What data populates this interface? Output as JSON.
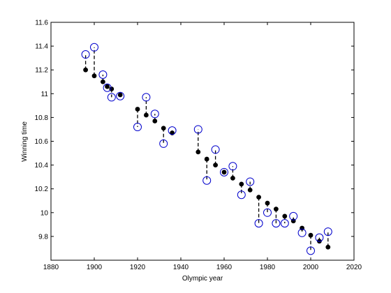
{
  "chart_data": {
    "type": "scatter",
    "xlabel": "Olympic year",
    "ylabel": "Winning time",
    "xlim": [
      1880,
      2020
    ],
    "ylim": [
      9.6,
      11.6
    ],
    "grid": false,
    "xticks": [
      1880,
      1900,
      1920,
      1940,
      1960,
      1980,
      2000,
      2020
    ],
    "yticks": [
      9.8,
      10,
      10.2,
      10.4,
      10.6,
      10.8,
      11,
      11.2,
      11.4,
      11.6
    ],
    "xtick_labels": [
      "1880",
      "1900",
      "1920",
      "1940",
      "1960",
      "1980",
      "2000",
      "2020"
    ],
    "ytick_labels": [
      "9.8",
      "10",
      "10.2",
      "10.4",
      "10.6",
      "10.8",
      "11",
      "11.2",
      "11.4",
      "11.6"
    ],
    "colors": {
      "actual": "#000000",
      "predicted": "#0000cc",
      "residual": "#000000"
    },
    "series": [
      {
        "style": "filled-dot",
        "points": [
          [
            1896,
            11.2
          ],
          [
            1900,
            11.15
          ],
          [
            1904,
            11.1
          ],
          [
            1906,
            11.06
          ],
          [
            1908,
            11.04
          ],
          [
            1912,
            10.99
          ],
          [
            1920,
            10.87
          ],
          [
            1924,
            10.82
          ],
          [
            1928,
            10.77
          ],
          [
            1932,
            10.71
          ],
          [
            1936,
            10.67
          ],
          [
            1948,
            10.51
          ],
          [
            1952,
            10.45
          ],
          [
            1956,
            10.4
          ],
          [
            1960,
            10.34
          ],
          [
            1964,
            10.29
          ],
          [
            1968,
            10.24
          ],
          [
            1972,
            10.19
          ],
          [
            1976,
            10.13
          ],
          [
            1980,
            10.08
          ],
          [
            1984,
            10.03
          ],
          [
            1988,
            9.97
          ],
          [
            1992,
            9.93
          ],
          [
            1996,
            9.87
          ],
          [
            2000,
            9.81
          ],
          [
            2004,
            9.76
          ],
          [
            2008,
            9.71
          ]
        ]
      },
      {
        "style": "open-circle",
        "points": [
          [
            1896,
            11.33
          ],
          [
            1900,
            11.39
          ],
          [
            1904,
            11.16
          ],
          [
            1906,
            11.05
          ],
          [
            1908,
            10.97
          ],
          [
            1912,
            10.98
          ],
          [
            1920,
            10.72
          ],
          [
            1924,
            10.97
          ],
          [
            1928,
            10.83
          ],
          [
            1932,
            10.58
          ],
          [
            1936,
            10.69
          ],
          [
            1948,
            10.7
          ],
          [
            1952,
            10.27
          ],
          [
            1956,
            10.53
          ],
          [
            1960,
            10.34
          ],
          [
            1964,
            10.39
          ],
          [
            1968,
            10.15
          ],
          [
            1972,
            10.26
          ],
          [
            1976,
            9.91
          ],
          [
            1980,
            10.0
          ],
          [
            1984,
            9.91
          ],
          [
            1988,
            9.91
          ],
          [
            1992,
            9.97
          ],
          [
            1996,
            9.83
          ],
          [
            2000,
            9.68
          ],
          [
            2004,
            9.79
          ],
          [
            2008,
            9.84
          ]
        ]
      }
    ]
  }
}
